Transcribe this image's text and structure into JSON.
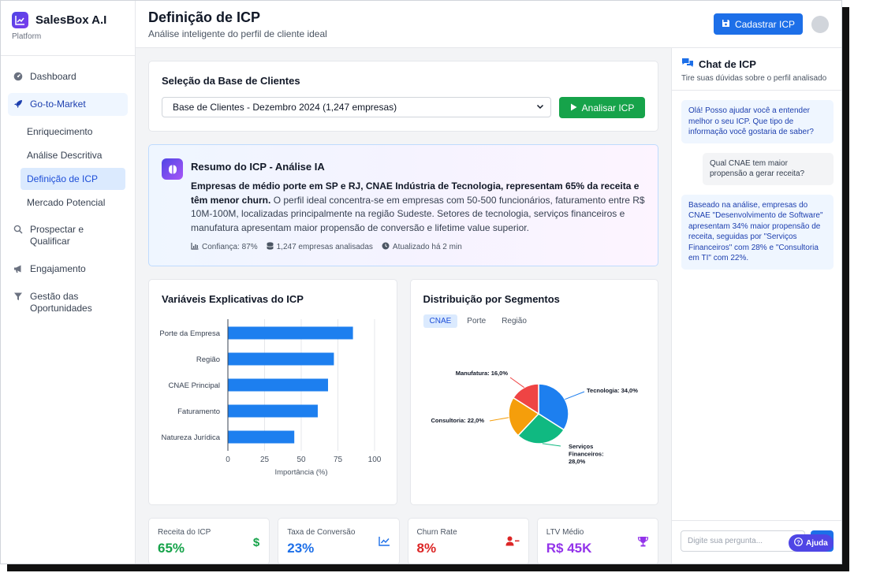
{
  "sidebar": {
    "brand_name": "SalesBox A.I",
    "brand_sub": "Platform",
    "items": [
      {
        "label": "Dashboard"
      },
      {
        "label": "Go-to-Market"
      },
      {
        "label": "Prospectar e Qualificar"
      },
      {
        "label": "Engajamento"
      },
      {
        "label": "Gestão das Oportunidades"
      }
    ],
    "subitems": [
      {
        "label": "Enriquecimento"
      },
      {
        "label": "Análise Descritiva"
      },
      {
        "label": "Definição de ICP"
      },
      {
        "label": "Mercado Potencial"
      }
    ]
  },
  "header": {
    "title": "Definição de ICP",
    "subtitle": "Análise inteligente do perfil de cliente ideal",
    "cta_label": "Cadastrar ICP"
  },
  "selection": {
    "title": "Seleção da Base de Clientes",
    "selected": "Base de Clientes - Dezembro 2024 (1,247 empresas)",
    "analyze_label": "Analisar ICP"
  },
  "summary": {
    "title": "Resumo do ICP - Análise IA",
    "highlight": "Empresas de médio porte em SP e RJ, CNAE Indústria de Tecnologia, representam 65% da receita e têm menor churn.",
    "text": " O perfil ideal concentra-se em empresas com 50-500 funcionários, faturamento entre R$ 10M-100M, localizadas principalmente na região Sudeste. Setores de tecnologia, serviços financeiros e manufatura apresentam maior propensão de conversão e lifetime value superior.",
    "confidence": "Confiança: 87%",
    "companies": "1,247 empresas analisadas",
    "updated": "Atualizado há 2 min"
  },
  "chart_data": [
    {
      "type": "bar",
      "orientation": "horizontal",
      "title": "Variáveis Explicativas do ICP",
      "categories": [
        "Porte da Empresa",
        "Região",
        "CNAE Principal",
        "Faturamento",
        "Natureza Jurídica"
      ],
      "values": [
        85,
        72,
        68,
        61,
        45
      ],
      "xlabel": "Importância (%)",
      "xlim": [
        0,
        100
      ],
      "xticks": [
        0,
        25,
        50,
        75,
        100
      ],
      "color": "#1d7fef",
      "grid": true
    },
    {
      "type": "pie",
      "title": "Distribuição por Segmentos",
      "tabs": [
        "CNAE",
        "Porte",
        "Região"
      ],
      "active_tab": "CNAE",
      "slices": [
        {
          "label": "Tecnologia: 34,0%",
          "value": 34,
          "color": "#1d7fef"
        },
        {
          "label": "Serviços Financeiros: 28,0%",
          "lines": [
            "Serviços",
            "Financeiros:",
            "28,0%"
          ],
          "value": 28,
          "color": "#10b981"
        },
        {
          "label": "Consultoria: 22,0%",
          "value": 22,
          "color": "#f59e0b"
        },
        {
          "label": "Manufatura: 16,0%",
          "value": 16,
          "color": "#ef4444"
        }
      ]
    }
  ],
  "kpis": [
    {
      "label": "Receita do ICP",
      "value": "65%",
      "color": "#16a34a",
      "icon": "dollar-icon"
    },
    {
      "label": "Taxa de Conversão",
      "value": "23%",
      "color": "#1d6fe8",
      "icon": "trend-chart-icon"
    },
    {
      "label": "Churn Rate",
      "value": "8%",
      "color": "#dc2626",
      "icon": "user-minus-icon"
    },
    {
      "label": "LTV Médio",
      "value": "R$ 45K",
      "color": "#9333ea",
      "icon": "trophy-icon"
    }
  ],
  "chat": {
    "title": "Chat de ICP",
    "subtitle": "Tire suas dúvidas sobre o perfil analisado",
    "messages": [
      {
        "role": "bot",
        "text": "Olá! Posso ajudar você a entender melhor o seu ICP. Que tipo de informação você gostaria de saber?"
      },
      {
        "role": "user",
        "text": "Qual CNAE tem maior propensão a gerar receita?"
      },
      {
        "role": "bot",
        "text": "Baseado na análise, empresas do CNAE \"Desenvolvimento de Software\" apresentam 34% maior propensão de receita, seguidas por \"Serviços Financeiros\" com 28% e \"Consultoria em TI\" com 22%."
      }
    ],
    "input_placeholder": "Digite sua pergunta...",
    "help_label": "Ajuda"
  }
}
